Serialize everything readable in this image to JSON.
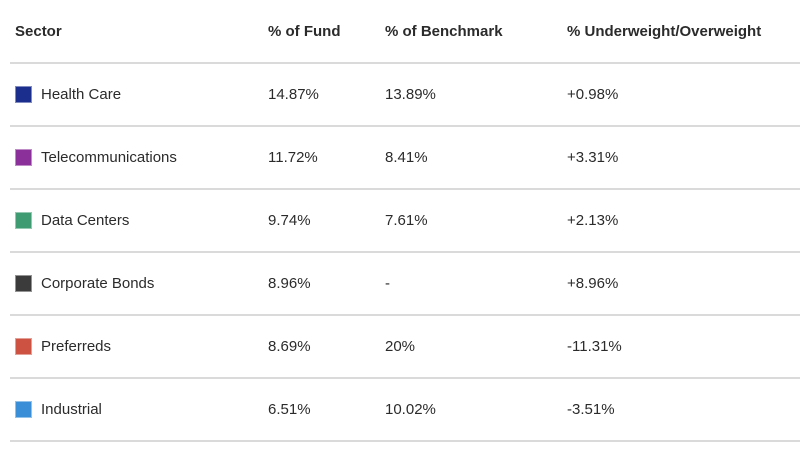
{
  "table": {
    "columns": [
      {
        "label": "Sector"
      },
      {
        "label": "% of Fund"
      },
      {
        "label": "% of Benchmark"
      },
      {
        "label": "% Underweight/Overweight"
      }
    ],
    "rows": [
      {
        "sector": "Health Care",
        "swatch_color": "#1b2d8d",
        "fund": "14.87%",
        "benchmark": "13.89%",
        "weight": "+0.98%"
      },
      {
        "sector": "Telecommunications",
        "swatch_color": "#8b2f9b",
        "fund": "11.72%",
        "benchmark": "8.41%",
        "weight": "+3.31%"
      },
      {
        "sector": "Data Centers",
        "swatch_color": "#3f9b72",
        "fund": "9.74%",
        "benchmark": "7.61%",
        "weight": "+2.13%"
      },
      {
        "sector": "Corporate Bonds",
        "swatch_color": "#3b3b3b",
        "fund": "8.96%",
        "benchmark": "-",
        "weight": "+8.96%"
      },
      {
        "sector": "Preferreds",
        "swatch_color": "#cd5241",
        "fund": "8.69%",
        "benchmark": "20%",
        "weight": "-11.31%"
      },
      {
        "sector": "Industrial",
        "swatch_color": "#3a8ed8",
        "fund": "6.51%",
        "benchmark": "10.02%",
        "weight": "-3.51%"
      }
    ]
  }
}
